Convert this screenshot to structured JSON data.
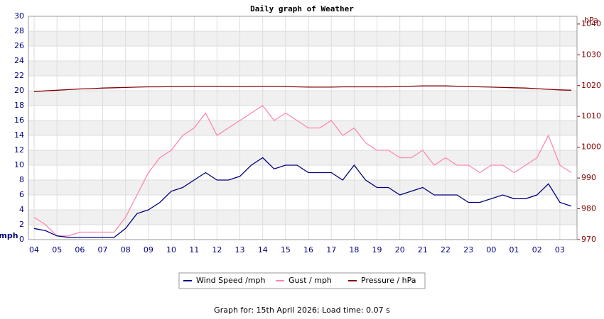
{
  "chart_data": {
    "type": "line",
    "title": "Daily graph of Weather",
    "y_label": "mph",
    "y2_label": "hPa",
    "footer": "Graph for: 15th April 2026; Load time: 0.07 s",
    "categories": [
      "04",
      null,
      "05",
      null,
      "06",
      null,
      "07",
      null,
      "08",
      null,
      "09",
      null,
      "10",
      null,
      "11",
      null,
      "12",
      null,
      "13",
      null,
      "14",
      null,
      "15",
      null,
      "16",
      null,
      "17",
      null,
      "18",
      null,
      "19",
      null,
      "20",
      null,
      "21",
      null,
      "22",
      null,
      "23",
      null,
      "00",
      null,
      "01",
      null,
      "02",
      null,
      "03",
      null
    ],
    "ylim": [
      0,
      30
    ],
    "yticks": [
      0,
      2,
      4,
      6,
      8,
      10,
      12,
      14,
      16,
      18,
      20,
      22,
      24,
      26,
      28,
      30
    ],
    "y2lim": [
      970,
      1042.5
    ],
    "y2ticks": [
      970,
      980,
      990,
      1000,
      1010,
      1020,
      1030,
      1040
    ],
    "grid": true,
    "series": [
      {
        "name": "Wind Speed /mph",
        "color": "#000080",
        "values": [
          1.5,
          1.2,
          0.5,
          0.3,
          0.3,
          0.3,
          0.3,
          0.3,
          1.5,
          3.5,
          4,
          5,
          6.5,
          7,
          8,
          9,
          8,
          8,
          8.5,
          10,
          11,
          9.5,
          10,
          10,
          9,
          9,
          9,
          8,
          10,
          8,
          7,
          7,
          6,
          6.5,
          7,
          6,
          6,
          6,
          5,
          5,
          5.5,
          6,
          5.5,
          5.5,
          6,
          7.5,
          5,
          4.5
        ]
      },
      {
        "name": "Gust / mph",
        "color": "#ff88aa",
        "values": [
          3,
          2,
          0.5,
          0.5,
          1,
          1,
          1,
          1,
          3,
          6,
          9,
          11,
          12,
          14,
          15,
          17,
          14,
          15,
          16,
          17,
          18,
          16,
          17,
          16,
          15,
          15,
          16,
          14,
          15,
          13,
          12,
          12,
          11,
          11,
          12,
          10,
          11,
          10,
          10,
          9,
          10,
          10,
          9,
          10,
          11,
          14,
          10,
          9
        ]
      },
      {
        "name": "Pressure / hPa",
        "color": "#800000",
        "axis": "y2",
        "values": [
          1018,
          1018.3,
          1018.5,
          1018.7,
          1018.9,
          1019,
          1019.2,
          1019.3,
          1019.4,
          1019.5,
          1019.6,
          1019.6,
          1019.7,
          1019.7,
          1019.8,
          1019.8,
          1019.8,
          1019.7,
          1019.7,
          1019.7,
          1019.8,
          1019.8,
          1019.7,
          1019.6,
          1019.5,
          1019.5,
          1019.5,
          1019.6,
          1019.6,
          1019.6,
          1019.6,
          1019.6,
          1019.7,
          1019.8,
          1019.9,
          1019.9,
          1019.9,
          1019.8,
          1019.7,
          1019.6,
          1019.5,
          1019.4,
          1019.3,
          1019.2,
          1019,
          1018.8,
          1018.6,
          1018.5
        ]
      }
    ]
  }
}
